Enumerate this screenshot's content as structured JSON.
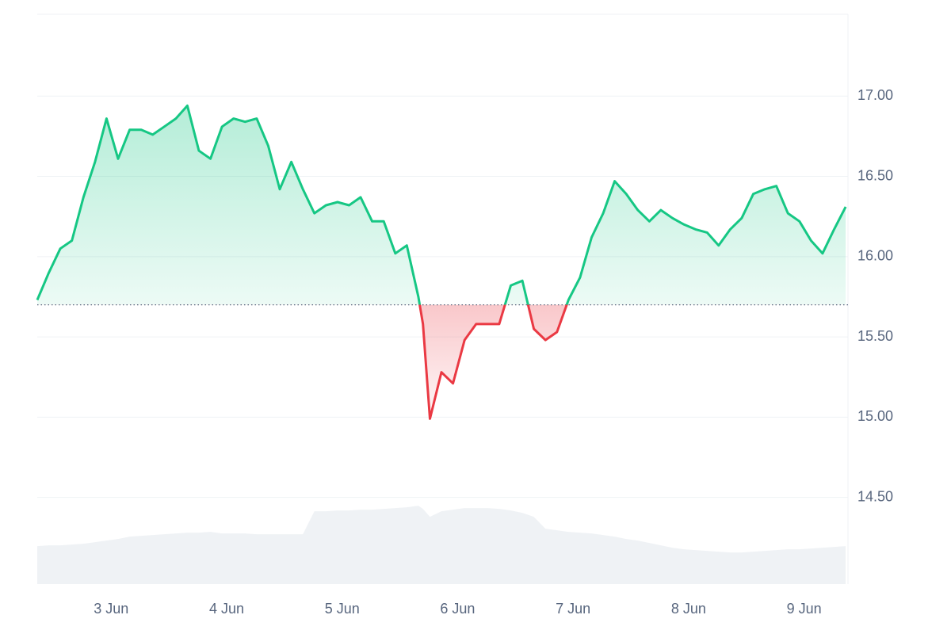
{
  "chart_data": {
    "type": "line",
    "x": [
      2.36,
      2.46,
      2.56,
      2.66,
      2.76,
      2.86,
      2.96,
      3.06,
      3.16,
      3.26,
      3.36,
      3.46,
      3.56,
      3.66,
      3.76,
      3.86,
      3.96,
      4.06,
      4.16,
      4.26,
      4.36,
      4.46,
      4.56,
      4.66,
      4.76,
      4.86,
      4.96,
      5.06,
      5.16,
      5.26,
      5.36,
      5.46,
      5.56,
      5.66,
      5.7,
      5.76,
      5.86,
      5.96,
      6.06,
      6.16,
      6.26,
      6.36,
      6.46,
      6.56,
      6.66,
      6.76,
      6.86,
      6.96,
      7.06,
      7.16,
      7.26,
      7.36,
      7.46,
      7.56,
      7.66,
      7.76,
      7.86,
      7.96,
      8.06,
      8.16,
      8.26,
      8.36,
      8.46,
      8.56,
      8.66,
      8.76,
      8.86,
      8.96,
      9.06,
      9.16,
      9.26,
      9.36
    ],
    "values": [
      15.73,
      15.9,
      16.05,
      16.1,
      16.37,
      16.59,
      16.86,
      16.61,
      16.79,
      16.79,
      16.76,
      16.81,
      16.86,
      16.94,
      16.66,
      16.61,
      16.81,
      16.86,
      16.84,
      16.86,
      16.69,
      16.42,
      16.59,
      16.42,
      16.27,
      16.32,
      16.34,
      16.32,
      16.37,
      16.22,
      16.22,
      16.02,
      16.07,
      15.75,
      15.58,
      14.99,
      15.28,
      15.21,
      15.48,
      15.58,
      15.58,
      15.58,
      15.82,
      15.85,
      15.55,
      15.48,
      15.53,
      15.73,
      15.87,
      16.12,
      16.27,
      16.47,
      16.39,
      16.29,
      16.22,
      16.29,
      16.24,
      16.2,
      16.17,
      16.15,
      16.07,
      16.17,
      16.24,
      16.39,
      16.42,
      16.44,
      16.27,
      16.22,
      16.1,
      16.02,
      16.17,
      16.31
    ],
    "color": "#16c784",
    "negative_color": "#ea3943",
    "baseline": 15.7,
    "volume": {
      "values": [
        48,
        49,
        49,
        50,
        51,
        53,
        55,
        57,
        60,
        61,
        62,
        63,
        64,
        65,
        65,
        66,
        64,
        64,
        64,
        63,
        63,
        63,
        63,
        63,
        92,
        92,
        93,
        93,
        94,
        94,
        95,
        96,
        97,
        99,
        95,
        85,
        92,
        94,
        96,
        96,
        96,
        95,
        93,
        90,
        85,
        70,
        68,
        66,
        65,
        64,
        62,
        60,
        57,
        55,
        52,
        49,
        46,
        44,
        43,
        42,
        41,
        40,
        40,
        41,
        42,
        43,
        44,
        44,
        45,
        46,
        47,
        48
      ],
      "color": "#eff2f5",
      "ylim": [
        0,
        720
      ]
    },
    "xlim": [
      2.36,
      9.38
    ],
    "xticks": [
      {
        "value": 3,
        "label": "3 Jun"
      },
      {
        "value": 4,
        "label": "4 Jun"
      },
      {
        "value": 5,
        "label": "5 Jun"
      },
      {
        "value": 6,
        "label": "6 Jun"
      },
      {
        "value": 7,
        "label": "7 Jun"
      },
      {
        "value": 8,
        "label": "8 Jun"
      },
      {
        "value": 9,
        "label": "9 Jun"
      }
    ],
    "ylim": [
      13.96,
      17.51
    ],
    "yticks": [
      {
        "value": 14.5,
        "label": "14.50"
      },
      {
        "value": 15,
        "label": "15.00"
      },
      {
        "value": 15.5,
        "label": "15.50"
      },
      {
        "value": 16,
        "label": "16.00"
      },
      {
        "value": 16.5,
        "label": "16.50"
      },
      {
        "value": 17,
        "label": "17.00"
      }
    ],
    "grid": true
  }
}
